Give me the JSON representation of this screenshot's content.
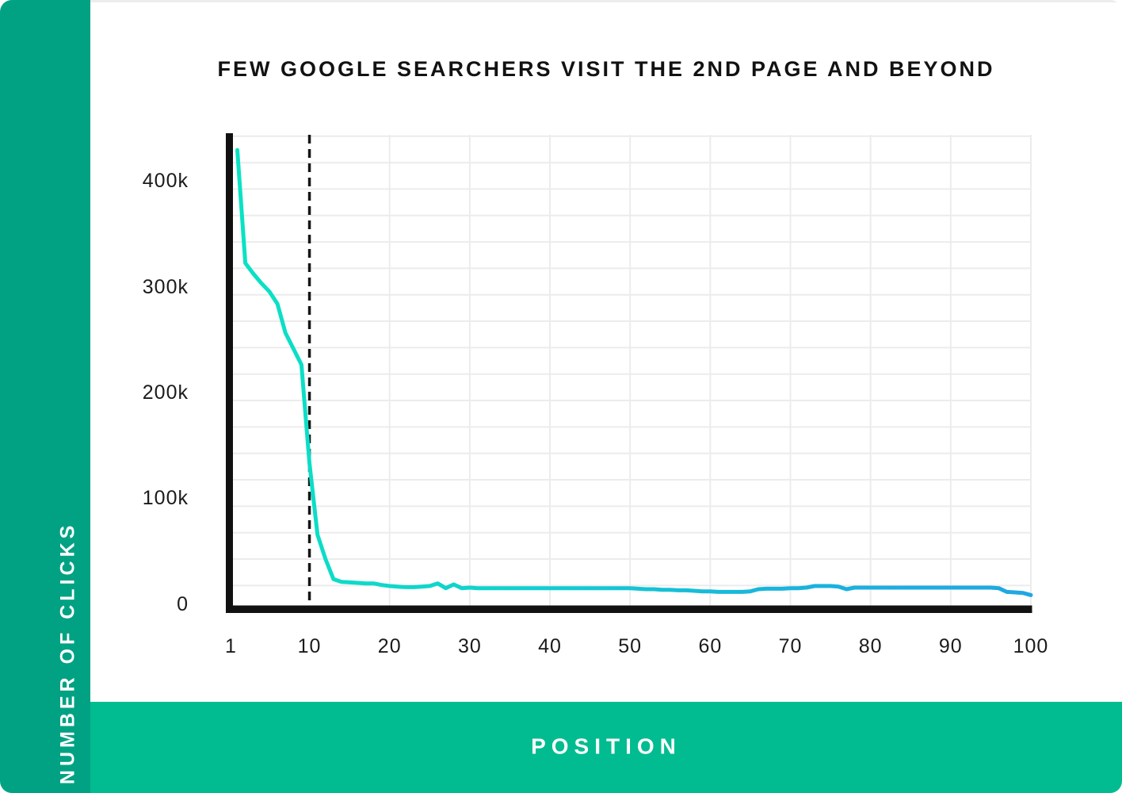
{
  "card": {
    "title": "FEW GOOGLE SEARCHERS VISIT THE 2ND PAGE AND BEYOND",
    "y_axis_title": "NUMBER OF CLICKS",
    "x_axis_title": "POSITION"
  },
  "colors": {
    "sidebar_green": "#00A283",
    "bottom_bar_green": "#01BC90",
    "grid": "#ECECEC",
    "axis_black": "#111111",
    "dashed_line": "#161616",
    "line_gradient_start": "#0AE2C3",
    "line_gradient_mid1": "#11D0CF",
    "line_gradient_mid2": "#1AB3DD",
    "line_gradient_end": "#20A7E1",
    "text_dark": "#1B1B1B",
    "text_white": "#FFFFFF"
  },
  "chart_data": {
    "type": "line",
    "title": "FEW GOOGLE SEARCHERS VISIT THE 2ND PAGE AND BEYOND",
    "xlabel": "POSITION",
    "ylabel": "NUMBER OF CLICKS",
    "legend": "none",
    "grid": "on",
    "x_range": [
      1,
      100
    ],
    "y_range_clicks": [
      0,
      450000
    ],
    "grid_step_clicks": 25000,
    "values_unit": "thousands of clicks",
    "dashed_marker_position": 10,
    "y_ticks": [
      {
        "label": "400k",
        "value": 400
      },
      {
        "label": "300k",
        "value": 300
      },
      {
        "label": "200k",
        "value": 200
      },
      {
        "label": "100k",
        "value": 100
      },
      {
        "label": "0",
        "value": 0
      }
    ],
    "x_ticks": [
      {
        "label": "1",
        "value": 1
      },
      {
        "label": "10",
        "value": 10
      },
      {
        "label": "20",
        "value": 20
      },
      {
        "label": "30",
        "value": 30
      },
      {
        "label": "40",
        "value": 40
      },
      {
        "label": "50",
        "value": 50
      },
      {
        "label": "60",
        "value": 60
      },
      {
        "label": "70",
        "value": 70
      },
      {
        "label": "80",
        "value": 80
      },
      {
        "label": "90",
        "value": 90
      },
      {
        "label": "100",
        "value": 100
      }
    ],
    "x": [
      1,
      2,
      3,
      4,
      5,
      6,
      7,
      8,
      9,
      10,
      11,
      12,
      13,
      14,
      15,
      16,
      17,
      18,
      19,
      20,
      21,
      22,
      23,
      24,
      25,
      26,
      27,
      28,
      29,
      30,
      31,
      32,
      33,
      34,
      35,
      36,
      37,
      38,
      39,
      40,
      41,
      42,
      43,
      44,
      45,
      46,
      47,
      48,
      49,
      50,
      51,
      52,
      53,
      54,
      55,
      56,
      57,
      58,
      59,
      60,
      61,
      62,
      63,
      64,
      65,
      66,
      67,
      68,
      69,
      70,
      71,
      72,
      73,
      74,
      75,
      76,
      77,
      78,
      79,
      80,
      81,
      82,
      83,
      84,
      85,
      86,
      87,
      88,
      89,
      90,
      91,
      92,
      93,
      94,
      95,
      96,
      97,
      98,
      99,
      100
    ],
    "values_thousands": [
      437,
      330,
      320,
      311,
      303,
      291.5,
      264,
      249,
      234,
      141,
      73,
      50,
      31,
      28.5,
      28,
      27.5,
      27,
      27,
      25.5,
      24.5,
      24,
      23.5,
      23.5,
      24,
      24.5,
      27,
      22.5,
      26,
      22.5,
      23,
      22.5,
      22.5,
      22.5,
      22.5,
      22.5,
      22.5,
      22.5,
      22.5,
      22.5,
      22.5,
      22.5,
      22.5,
      22.5,
      22.5,
      22.5,
      22.5,
      22.5,
      22.5,
      22.5,
      22.5,
      22,
      21.5,
      21.5,
      21,
      21,
      20.5,
      20.5,
      20,
      19.5,
      19.5,
      19,
      19,
      19,
      19,
      19.5,
      21.5,
      22,
      22,
      22,
      22.5,
      22.5,
      23,
      24.5,
      24.5,
      24.5,
      24,
      21.5,
      23,
      23,
      23,
      23,
      23,
      23,
      23,
      23,
      23,
      23,
      23,
      23,
      23,
      23,
      23,
      23,
      23,
      23,
      22.5,
      19,
      18.5,
      18,
      16
    ]
  }
}
